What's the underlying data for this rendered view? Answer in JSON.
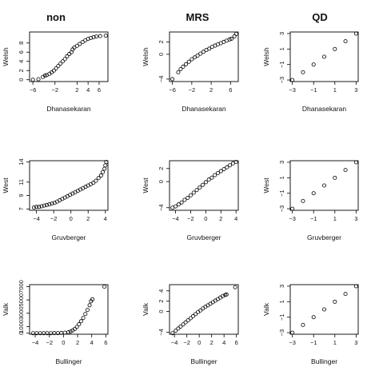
{
  "column_titles": [
    "non",
    "MRS",
    "QD"
  ],
  "chart_data": [
    {
      "type": "scatter",
      "title": "",
      "panel": "non / Welsh",
      "xlabel": "Dhanasekaran",
      "ylabel": "Welsh",
      "xlim": [
        -6.6,
        7.6
      ],
      "ylim": [
        -0.4,
        10.4
      ],
      "xticks": [
        -6,
        -2,
        2,
        4,
        6
      ],
      "yticks": [
        0,
        2,
        4,
        6,
        8
      ],
      "grid": false,
      "marker": "open-circle",
      "points": [
        [
          -6.0,
          0.0
        ],
        [
          -5.0,
          0.1
        ],
        [
          -4.2,
          0.6
        ],
        [
          -3.8,
          0.9
        ],
        [
          -3.5,
          1.0
        ],
        [
          -3.0,
          1.3
        ],
        [
          -2.6,
          1.6
        ],
        [
          -2.2,
          2.0
        ],
        [
          -1.8,
          2.5
        ],
        [
          -1.4,
          3.0
        ],
        [
          -1.0,
          3.5
        ],
        [
          -0.6,
          4.0
        ],
        [
          -0.2,
          4.5
        ],
        [
          0.2,
          5.1
        ],
        [
          0.6,
          5.6
        ],
        [
          1.0,
          6.0
        ],
        [
          1.2,
          6.6
        ],
        [
          1.5,
          7.0
        ],
        [
          2.0,
          7.4
        ],
        [
          2.5,
          7.8
        ],
        [
          3.0,
          8.2
        ],
        [
          3.5,
          8.6
        ],
        [
          4.0,
          8.9
        ],
        [
          4.5,
          9.1
        ],
        [
          5.0,
          9.3
        ],
        [
          5.5,
          9.4
        ],
        [
          6.2,
          9.5
        ],
        [
          7.2,
          9.6
        ]
      ]
    },
    {
      "type": "scatter",
      "title": "",
      "panel": "MRS / Welsh",
      "xlabel": "Dhanasekaran",
      "ylabel": "Welsh",
      "xlim": [
        -6.6,
        7.6
      ],
      "ylim": [
        -4.4,
        3.6
      ],
      "xticks": [
        -6,
        -2,
        2,
        6
      ],
      "yticks": [
        -4,
        0,
        2
      ],
      "grid": false,
      "marker": "open-circle",
      "points": [
        [
          -6.0,
          -4.0
        ],
        [
          -4.8,
          -2.9
        ],
        [
          -4.3,
          -2.4
        ],
        [
          -3.8,
          -2.0
        ],
        [
          -3.2,
          -1.6
        ],
        [
          -2.6,
          -1.2
        ],
        [
          -2.0,
          -0.8
        ],
        [
          -1.4,
          -0.5
        ],
        [
          -0.8,
          -0.2
        ],
        [
          -0.2,
          0.1
        ],
        [
          0.4,
          0.4
        ],
        [
          1.0,
          0.7
        ],
        [
          1.6,
          0.9
        ],
        [
          2.2,
          1.2
        ],
        [
          2.8,
          1.4
        ],
        [
          3.4,
          1.6
        ],
        [
          4.0,
          1.8
        ],
        [
          4.6,
          2.0
        ],
        [
          5.2,
          2.2
        ],
        [
          5.8,
          2.4
        ],
        [
          6.2,
          2.5
        ],
        [
          6.8,
          2.9
        ],
        [
          7.2,
          3.3
        ]
      ]
    },
    {
      "type": "scatter",
      "title": "",
      "panel": "QD / Welsh",
      "xlabel": "Dhanasekaran",
      "ylabel": "Welsh",
      "xlim": [
        -3.2,
        3.2
      ],
      "ylim": [
        -3.2,
        3.2
      ],
      "xticks": [
        -3,
        -1,
        1,
        3
      ],
      "yticks": [
        -3,
        -1,
        1,
        3
      ],
      "grid": false,
      "marker": "open-circle",
      "points": [
        [
          -3,
          -3
        ],
        [
          -2,
          -2
        ],
        [
          -1,
          -1
        ],
        [
          0,
          0
        ],
        [
          1,
          1
        ],
        [
          2,
          2
        ],
        [
          3,
          3
        ]
      ]
    },
    {
      "type": "scatter",
      "title": "",
      "panel": "non / West",
      "xlabel": "Gruvberger",
      "ylabel": "West",
      "xlim": [
        -4.8,
        4.3
      ],
      "ylim": [
        6.8,
        14.2
      ],
      "xticks": [
        -4,
        -2,
        0,
        2,
        4
      ],
      "yticks": [
        7,
        9,
        11,
        14
      ],
      "grid": false,
      "marker": "open-circle",
      "points": [
        [
          -4.3,
          7.2
        ],
        [
          -4.0,
          7.3
        ],
        [
          -3.7,
          7.3
        ],
        [
          -3.4,
          7.4
        ],
        [
          -3.1,
          7.5
        ],
        [
          -2.8,
          7.6
        ],
        [
          -2.5,
          7.7
        ],
        [
          -2.2,
          7.8
        ],
        [
          -1.9,
          7.9
        ],
        [
          -1.6,
          8.1
        ],
        [
          -1.3,
          8.3
        ],
        [
          -1.0,
          8.5
        ],
        [
          -0.7,
          8.7
        ],
        [
          -0.4,
          8.9
        ],
        [
          -0.1,
          9.1
        ],
        [
          0.2,
          9.3
        ],
        [
          0.5,
          9.5
        ],
        [
          0.8,
          9.7
        ],
        [
          1.1,
          9.9
        ],
        [
          1.4,
          10.1
        ],
        [
          1.7,
          10.3
        ],
        [
          2.0,
          10.5
        ],
        [
          2.3,
          10.7
        ],
        [
          2.6,
          10.9
        ],
        [
          2.9,
          11.2
        ],
        [
          3.2,
          11.6
        ],
        [
          3.5,
          12.0
        ],
        [
          3.7,
          12.5
        ],
        [
          3.9,
          13.0
        ],
        [
          4.0,
          13.5
        ],
        [
          4.1,
          14.0
        ]
      ]
    },
    {
      "type": "scatter",
      "title": "",
      "panel": "MRS / West",
      "xlabel": "Gruvberger",
      "ylabel": "West",
      "xlim": [
        -4.8,
        4.3
      ],
      "ylim": [
        -4.4,
        3.2
      ],
      "xticks": [
        -4,
        -2,
        0,
        2,
        4
      ],
      "yticks": [
        -4,
        0,
        2
      ],
      "grid": false,
      "marker": "open-circle",
      "points": [
        [
          -4.4,
          -4.0
        ],
        [
          -4.0,
          -3.8
        ],
        [
          -3.6,
          -3.5
        ],
        [
          -3.2,
          -3.2
        ],
        [
          -2.8,
          -2.8
        ],
        [
          -2.4,
          -2.5
        ],
        [
          -2.0,
          -2.1
        ],
        [
          -1.6,
          -1.7
        ],
        [
          -1.2,
          -1.3
        ],
        [
          -0.8,
          -0.9
        ],
        [
          -0.4,
          -0.5
        ],
        [
          0.0,
          -0.1
        ],
        [
          0.4,
          0.3
        ],
        [
          0.8,
          0.6
        ],
        [
          1.2,
          1.0
        ],
        [
          1.6,
          1.3
        ],
        [
          2.0,
          1.6
        ],
        [
          2.4,
          1.9
        ],
        [
          2.8,
          2.2
        ],
        [
          3.2,
          2.5
        ],
        [
          3.6,
          2.8
        ],
        [
          4.0,
          3.0
        ]
      ]
    },
    {
      "type": "scatter",
      "title": "",
      "panel": "QD / West",
      "xlabel": "Gruvberger",
      "ylabel": "West",
      "xlim": [
        -3.2,
        3.2
      ],
      "ylim": [
        -3.2,
        3.2
      ],
      "xticks": [
        -3,
        -1,
        1,
        3
      ],
      "yticks": [
        -3,
        -1,
        1,
        3
      ],
      "grid": false,
      "marker": "open-circle",
      "points": [
        [
          -3,
          -3
        ],
        [
          -2,
          -2
        ],
        [
          -1,
          -1
        ],
        [
          0,
          0
        ],
        [
          1,
          1
        ],
        [
          2,
          2
        ],
        [
          3,
          3
        ]
      ]
    },
    {
      "type": "scatter",
      "title": "",
      "panel": "non / Valk",
      "xlabel": "Bullinger",
      "ylabel": "Valk",
      "xlim": [
        -4.8,
        6.3
      ],
      "ylim": [
        -150,
        7300
      ],
      "xticks": [
        -4,
        -2,
        0,
        2,
        4,
        6
      ],
      "yticks": [
        0,
        1000,
        3000,
        5000,
        7000
      ],
      "grid": false,
      "marker": "open-circle",
      "points": [
        [
          -4.3,
          0
        ],
        [
          -3.8,
          0
        ],
        [
          -3.3,
          0
        ],
        [
          -2.8,
          0
        ],
        [
          -2.3,
          0
        ],
        [
          -1.8,
          0
        ],
        [
          -1.3,
          10
        ],
        [
          -0.8,
          20
        ],
        [
          -0.3,
          40
        ],
        [
          0.2,
          80
        ],
        [
          0.7,
          150
        ],
        [
          1.0,
          260
        ],
        [
          1.3,
          420
        ],
        [
          1.6,
          650
        ],
        [
          1.9,
          950
        ],
        [
          2.2,
          1350
        ],
        [
          2.5,
          1800
        ],
        [
          2.8,
          2300
        ],
        [
          3.1,
          2900
        ],
        [
          3.4,
          3500
        ],
        [
          3.7,
          4200
        ],
        [
          3.9,
          4800
        ],
        [
          4.1,
          5100
        ],
        [
          5.8,
          7000
        ]
      ]
    },
    {
      "type": "scatter",
      "title": "",
      "panel": "MRS / Valk",
      "xlabel": "Bullinger",
      "ylabel": "Valk",
      "xlim": [
        -4.8,
        6.3
      ],
      "ylim": [
        -4.4,
        5.2
      ],
      "xticks": [
        -4,
        -2,
        0,
        2,
        4,
        6
      ],
      "yticks": [
        -4,
        0,
        2,
        4
      ],
      "grid": false,
      "marker": "open-circle",
      "points": [
        [
          -4.3,
          -4.2
        ],
        [
          -3.8,
          -3.7
        ],
        [
          -3.4,
          -3.3
        ],
        [
          -3.0,
          -2.9
        ],
        [
          -2.6,
          -2.5
        ],
        [
          -2.2,
          -2.1
        ],
        [
          -1.8,
          -1.7
        ],
        [
          -1.4,
          -1.3
        ],
        [
          -1.0,
          -0.9
        ],
        [
          -0.6,
          -0.5
        ],
        [
          -0.2,
          -0.1
        ],
        [
          0.2,
          0.2
        ],
        [
          0.6,
          0.6
        ],
        [
          1.0,
          0.9
        ],
        [
          1.4,
          1.2
        ],
        [
          1.8,
          1.5
        ],
        [
          2.2,
          1.8
        ],
        [
          2.6,
          2.1
        ],
        [
          3.0,
          2.4
        ],
        [
          3.4,
          2.7
        ],
        [
          3.8,
          3.0
        ],
        [
          4.2,
          3.2
        ],
        [
          4.4,
          3.3
        ],
        [
          5.8,
          4.7
        ]
      ]
    },
    {
      "type": "scatter",
      "title": "",
      "panel": "QD / Valk",
      "xlabel": "Bullinger",
      "ylabel": "Valk",
      "xlim": [
        -3.2,
        3.2
      ],
      "ylim": [
        -3.2,
        3.2
      ],
      "xticks": [
        -3,
        -1,
        1,
        3
      ],
      "yticks": [
        -3,
        -1,
        1,
        3
      ],
      "grid": false,
      "marker": "open-circle",
      "points": [
        [
          -3,
          -3
        ],
        [
          -2,
          -2
        ],
        [
          -1,
          -1
        ],
        [
          0,
          0
        ],
        [
          1,
          1
        ],
        [
          2,
          2
        ],
        [
          3,
          3
        ]
      ]
    }
  ]
}
